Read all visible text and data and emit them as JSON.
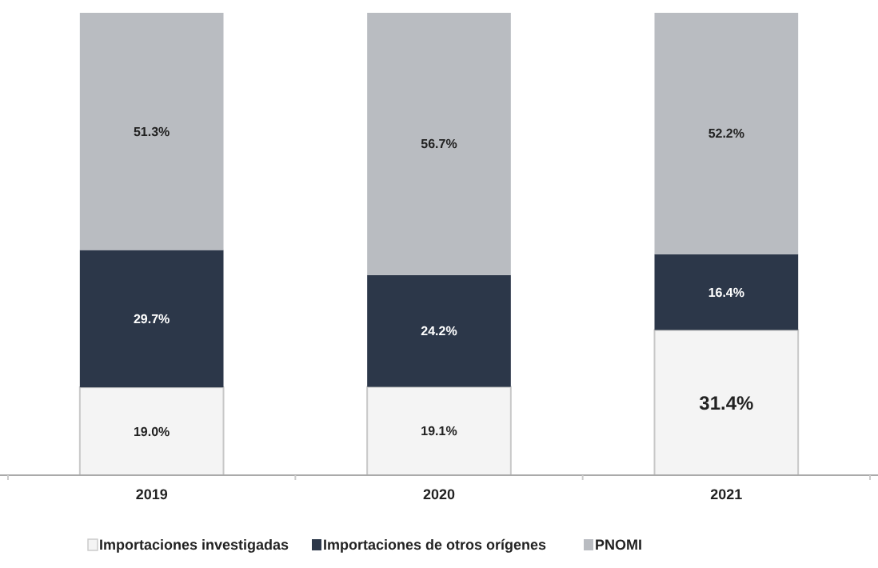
{
  "chart_data": {
    "type": "bar",
    "stacked": true,
    "categories": [
      "2019",
      "2020",
      "2021"
    ],
    "legend": "bottom",
    "series": [
      {
        "name": "Importaciones investigadas",
        "color": "#f4f4f4",
        "values": [
          19.0,
          19.1,
          31.4
        ],
        "value_labels": [
          "19.0%",
          "19.1%",
          "31.4%"
        ]
      },
      {
        "name": "Importaciones de otros orígenes",
        "color": "#2c3749",
        "values": [
          29.7,
          24.2,
          16.4
        ],
        "value_labels": [
          "29.7%",
          "24.2%",
          "16.4%"
        ]
      },
      {
        "name": "PNOMI",
        "color": "#b9bcc1",
        "values": [
          51.3,
          56.7,
          52.2
        ],
        "value_labels": [
          "51.3%",
          "56.7%",
          "52.2%"
        ]
      }
    ]
  }
}
